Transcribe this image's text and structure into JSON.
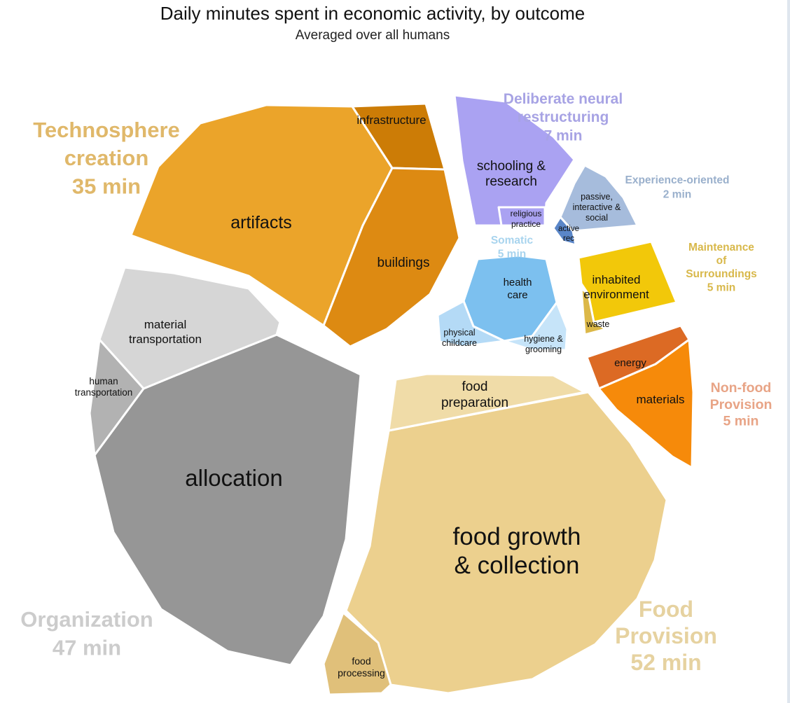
{
  "title": "Daily minutes spent in economic activity, by outcome",
  "subtitle": "Averaged over all humans",
  "chart_data": {
    "type": "voronoi-treemap",
    "title": "Daily minutes spent in economic activity, by outcome",
    "subtitle": "Averaged over all humans",
    "unit": "min",
    "groups": [
      {
        "id": "technosphere",
        "name_lines": [
          "Technosphere",
          "creation"
        ],
        "value_label": "35 min",
        "value": 35,
        "color": "#e0b86a",
        "children": [
          {
            "id": "artifacts",
            "lines": [
              "artifacts"
            ],
            "color": "#eba42a"
          },
          {
            "id": "infrastructure",
            "lines": [
              "infrastructure"
            ],
            "color": "#cc7c06"
          },
          {
            "id": "buildings",
            "lines": [
              "buildings"
            ],
            "color": "#dd8a12"
          }
        ]
      },
      {
        "id": "neural",
        "name_lines": [
          "Deliberate neural",
          "restructuring"
        ],
        "value_label": "7 min",
        "value": 7,
        "color": "#a7a3e4",
        "children": [
          {
            "id": "schooling",
            "lines": [
              "schooling &",
              "research"
            ],
            "color": "#aaa2f2"
          },
          {
            "id": "religious",
            "lines": [
              "religious",
              "practice"
            ],
            "color": "#aaa2f2"
          }
        ]
      },
      {
        "id": "experience",
        "name_lines": [
          "Experience-oriented"
        ],
        "value_label": "2 min",
        "value": 2,
        "color": "#9ab0cc",
        "children": [
          {
            "id": "passive",
            "lines": [
              "passive,",
              "interactive &",
              "social"
            ],
            "color": "#a6bcdc"
          },
          {
            "id": "activerec",
            "lines": [
              "active",
              "rec"
            ],
            "color": "#5a86c8"
          }
        ]
      },
      {
        "id": "somatic",
        "name_lines": [
          "Somatic"
        ],
        "value_label": "5 min",
        "value": 5,
        "color": "#a8d4ee",
        "children": [
          {
            "id": "healthcare",
            "lines": [
              "health",
              "care"
            ],
            "color": "#7cc0ef"
          },
          {
            "id": "childcare",
            "lines": [
              "physical",
              "childcare"
            ],
            "color": "#b4daf6"
          },
          {
            "id": "hygiene",
            "lines": [
              "hygiene &",
              "grooming"
            ],
            "color": "#c6e4f9"
          }
        ]
      },
      {
        "id": "maintenance",
        "name_lines": [
          "Maintenance",
          "of",
          "Surroundings"
        ],
        "value_label": "5 min",
        "value": 5,
        "color": "#d8b84a",
        "children": [
          {
            "id": "inhabited",
            "lines": [
              "inhabited",
              "environment"
            ],
            "color": "#f2c80a"
          },
          {
            "id": "waste",
            "lines": [
              "waste"
            ],
            "color": "#dcb848"
          }
        ]
      },
      {
        "id": "nonfood",
        "name_lines": [
          "Non-food",
          "Provision"
        ],
        "value_label": "5 min",
        "value": 5,
        "color": "#e8a486",
        "children": [
          {
            "id": "energy",
            "lines": [
              "energy"
            ],
            "color": "#dc6a24"
          },
          {
            "id": "materials",
            "lines": [
              "materials"
            ],
            "color": "#f68a0a"
          }
        ]
      },
      {
        "id": "food",
        "name_lines": [
          "Food",
          "Provision"
        ],
        "value_label": "52 min",
        "value": 52,
        "color": "#e6d2a0",
        "children": [
          {
            "id": "foodgrowth",
            "lines": [
              "food growth",
              "& collection"
            ],
            "color": "#ecd08e"
          },
          {
            "id": "foodprep",
            "lines": [
              "food",
              "preparation"
            ],
            "color": "#f0dca8"
          },
          {
            "id": "foodproc",
            "lines": [
              "food",
              "processing"
            ],
            "color": "#e0c07a"
          }
        ]
      },
      {
        "id": "organization",
        "name_lines": [
          "Organization"
        ],
        "value_label": "47 min",
        "value": 47,
        "color": "#cccccc",
        "children": [
          {
            "id": "allocation",
            "lines": [
              "allocation"
            ],
            "color": "#969696"
          },
          {
            "id": "materialtransport",
            "lines": [
              "material",
              "transportation"
            ],
            "color": "#d6d6d6"
          },
          {
            "id": "humantransport",
            "lines": [
              "human",
              "transportation"
            ],
            "color": "#b2b2b2"
          }
        ]
      }
    ]
  }
}
